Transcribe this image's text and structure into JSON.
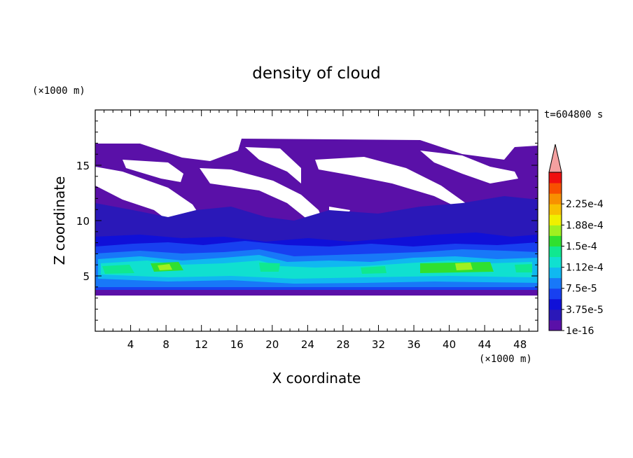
{
  "chart_data": {
    "type": "heatmap",
    "title": "density of cloud",
    "xlabel": "X coordinate",
    "ylabel": "Z coordinate",
    "x_unit": "(×1000 m)",
    "y_unit": "(×1000 m)",
    "time_label": "t=604800 s",
    "xlim": [
      0,
      50
    ],
    "ylim": [
      0,
      20
    ],
    "x_ticks": [
      4,
      8,
      12,
      16,
      20,
      24,
      28,
      32,
      36,
      40,
      44,
      48
    ],
    "y_ticks": [
      5,
      10,
      15
    ],
    "colorbar": {
      "labels": [
        "1e-16",
        "3.75e-5",
        "7.5e-5",
        "1.12e-4",
        "1.5e-4",
        "1.88e-4",
        "2.25e-4"
      ],
      "colors": [
        "#5a10a8",
        "#2a18b8",
        "#1010d8",
        "#1840f0",
        "#1878f8",
        "#10b8f0",
        "#10e0d0",
        "#10e890",
        "#30e030",
        "#a0f020",
        "#f0f000",
        "#f8c000",
        "#f89000",
        "#f85000",
        "#f01010"
      ],
      "over_color": "#f4a0a0"
    }
  }
}
